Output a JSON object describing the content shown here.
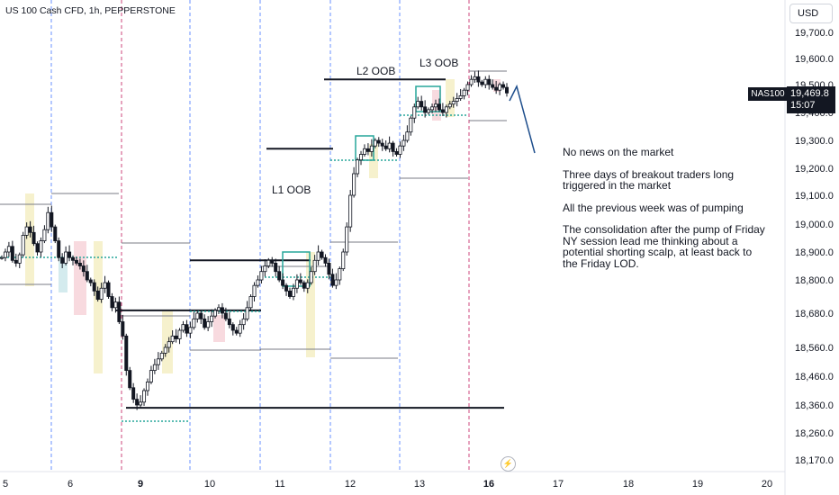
{
  "header": {
    "symbol_title": "US 100 Cash CFD, 1h, PEPPERSTONE",
    "currency_button": "USD"
  },
  "price_scale": {
    "ticks": [
      "19,700.0",
      "19,600.0",
      "19,500.0",
      "19,400.0",
      "19,300.0",
      "19,200.0",
      "19,100.0",
      "19,000.0",
      "18,900.0",
      "18,800.0",
      "18,680.0",
      "18,560.0",
      "18,460.0",
      "18,360.0",
      "18,260.0",
      "18,170.0"
    ],
    "current_price": "19,469.8",
    "countdown": "15:07",
    "symbol_label": "NAS100"
  },
  "time_scale": {
    "ticks": [
      {
        "label": "5",
        "bold": false
      },
      {
        "label": "6",
        "bold": false
      },
      {
        "label": "9",
        "bold": true
      },
      {
        "label": "10",
        "bold": false
      },
      {
        "label": "11",
        "bold": false
      },
      {
        "label": "12",
        "bold": false
      },
      {
        "label": "13",
        "bold": false
      },
      {
        "label": "16",
        "bold": true
      },
      {
        "label": "17",
        "bold": false
      },
      {
        "label": "18",
        "bold": false
      },
      {
        "label": "19",
        "bold": false
      },
      {
        "label": "20",
        "bold": false
      }
    ]
  },
  "annotations": {
    "l1": "L1 OOB",
    "l2": "L2 OOB",
    "l3": "L3 OOB"
  },
  "note": {
    "p1": "No news on the market",
    "p2": "Three days of breakout traders long triggered in the market",
    "p3": "All the previous week was of pumping",
    "p4": "The consolidation after the pump of Friday NY session lead me thinking about a potential shorting scalp, at least back to the Friday LOD."
  },
  "colors": {
    "bull": "#ffffff",
    "bear": "#131722",
    "session_yellow": "#f5f0c8",
    "session_pink": "#f7d6dc",
    "session_teal": "#cfe9ec",
    "box_teal": "#26a69a",
    "projection": "#1e4e8c",
    "day_line": "#2962ff",
    "week_line": "#c2185b"
  },
  "chart_data": {
    "type": "candlestick",
    "title": "US 100 Cash CFD, 1h, PEPPERSTONE",
    "ylim": [
      18170,
      19700
    ],
    "levels": [
      {
        "from": "9",
        "to": "16",
        "price": 18350
      },
      {
        "from": "9",
        "to": "10",
        "price": 18690
      },
      {
        "from": "10",
        "to": "11",
        "price": 18870
      },
      {
        "from": "11",
        "to": "12",
        "price": 19270
      },
      {
        "from": "12",
        "to": "13",
        "price": 19520
      }
    ],
    "close": [
      18880,
      18900,
      18920,
      18870,
      18860,
      18890,
      18960,
      18990,
      18970,
      18930,
      18900,
      18940,
      18980,
      19040,
      18990,
      18940,
      18880,
      18860,
      18900,
      18880,
      18870,
      18860,
      18850,
      18830,
      18800,
      18790,
      18760,
      18730,
      18770,
      18790,
      18740,
      18700,
      18720,
      18650,
      18600,
      18480,
      18420,
      18380,
      18360,
      18370,
      18410,
      18440,
      18480,
      18500,
      18520,
      18540,
      18560,
      18580,
      18600,
      18590,
      18620,
      18640,
      18610,
      18630,
      18660,
      18680,
      18660,
      18630,
      18650,
      18670,
      18690,
      18700,
      18680,
      18660,
      18640,
      18620,
      18610,
      18640,
      18660,
      18700,
      18740,
      18780,
      18800,
      18830,
      18850,
      18870,
      18860,
      18830,
      18800,
      18780,
      18760,
      18740,
      18770,
      18800,
      18790,
      18770,
      18790,
      18830,
      18870,
      18900,
      18880,
      18860,
      18820,
      18780,
      18800,
      18840,
      18900,
      18990,
      19100,
      19180,
      19230,
      19250,
      19270,
      19260,
      19280,
      19300,
      19290,
      19280,
      19270,
      19290,
      19260,
      19250,
      19280,
      19300,
      19330,
      19380,
      19420,
      19440,
      19420,
      19400,
      19410,
      19420,
      19430,
      19410,
      19400,
      19420,
      19430,
      19440,
      19450,
      19460,
      19480,
      19500,
      19520,
      19530,
      19510,
      19500,
      19520,
      19500,
      19490,
      19480,
      19500,
      19490,
      19470
    ]
  }
}
